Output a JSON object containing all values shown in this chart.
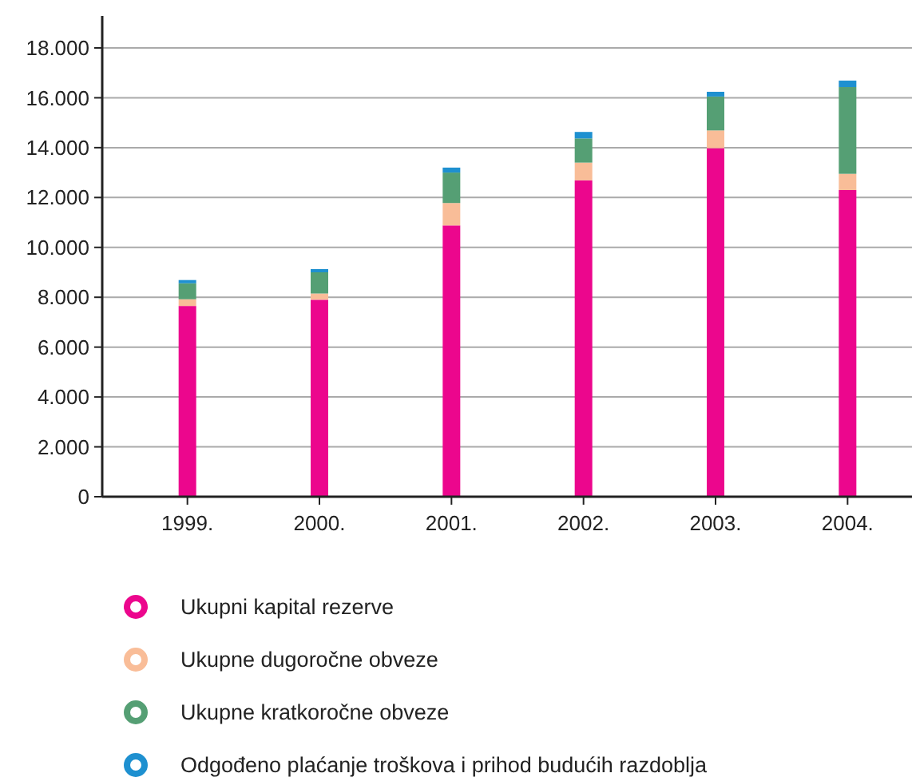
{
  "chart_data": {
    "type": "bar",
    "stacked": true,
    "categories": [
      "1999.",
      "2000.",
      "2001.",
      "2002.",
      "2003.",
      "2004."
    ],
    "series": [
      {
        "name": "Ukupni kapital rezerve",
        "color": "#ec068d",
        "values": [
          7650,
          7900,
          10880,
          12690,
          13980,
          12300
        ]
      },
      {
        "name": "Ukupne dugoročne obveze",
        "color": "#f9bd98",
        "values": [
          270,
          250,
          900,
          710,
          710,
          650
        ]
      },
      {
        "name": "Ukupne kratkoročne obveze",
        "color": "#559f74",
        "values": [
          640,
          850,
          1220,
          970,
          1360,
          3480
        ]
      },
      {
        "name": "Odgođeno plaćanje troškova i prihod budućih razdoblja",
        "color": "#1e90d0",
        "values": [
          130,
          130,
          200,
          260,
          190,
          260
        ]
      }
    ],
    "ylim": [
      0,
      18000
    ],
    "yticks": [
      {
        "value": 0,
        "label": "0"
      },
      {
        "value": 2000,
        "label": "2.000"
      },
      {
        "value": 4000,
        "label": "4.000"
      },
      {
        "value": 6000,
        "label": "6.000"
      },
      {
        "value": 8000,
        "label": "8.000"
      },
      {
        "value": 10000,
        "label": "10.000"
      },
      {
        "value": 12000,
        "label": "12.000"
      },
      {
        "value": 14000,
        "label": "14.000"
      },
      {
        "value": 16000,
        "label": "16.000"
      },
      {
        "value": 18000,
        "label": "18.000"
      }
    ],
    "grid": "y",
    "legend": "bottom"
  }
}
